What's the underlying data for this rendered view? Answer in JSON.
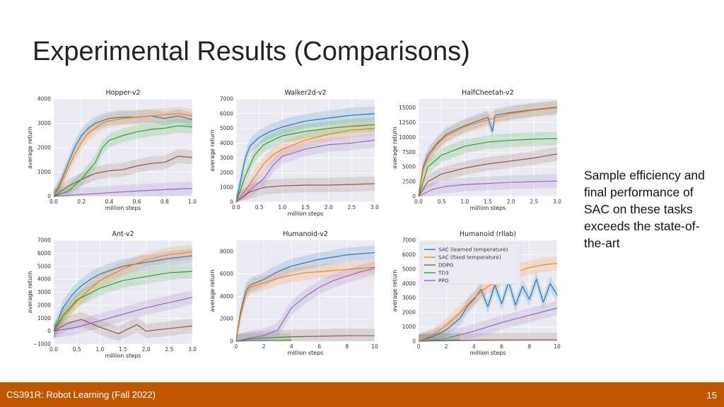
{
  "slide": {
    "title": "Experimental Results (Comparisons)",
    "side_text": "Sample efficiency and final performance of SAC on these tasks exceeds the state-of-the-art",
    "footer_left": "CS391R: Robot Learning (Fall 2022)",
    "page_number": "15"
  },
  "colors": {
    "SAC (learned temperature)": "#1f77b4",
    "SAC (fixed temperature)": "#ff7f0e",
    "DDPG": "#8c564b",
    "TD3": "#2ca02c",
    "PPO": "#9467bd",
    "footer": "#bf5700"
  },
  "chart_data": [
    {
      "type": "line",
      "title": "Hopper-v2",
      "xlabel": "million steps",
      "ylabel": "average return",
      "xlim": [
        0,
        1.0
      ],
      "ylim": [
        0,
        4000
      ],
      "xticks": [
        "0.0",
        "0.2",
        "0.4",
        "0.6",
        "0.8",
        "1.0"
      ],
      "xtick_values": [
        0,
        0.2,
        0.4,
        0.6,
        0.8,
        1.0
      ],
      "yticks": [
        "0",
        "1000",
        "2000",
        "3000",
        "4000"
      ],
      "ytick_values": [
        0,
        1000,
        2000,
        3000,
        4000
      ],
      "series": [
        {
          "name": "SAC (learned temperature)",
          "x": [
            0,
            0.05,
            0.1,
            0.15,
            0.2,
            0.25,
            0.3,
            0.35,
            0.4,
            0.5,
            0.6,
            0.7,
            0.8,
            0.9,
            1.0
          ],
          "y": [
            0,
            600,
            1300,
            2000,
            2500,
            2800,
            3000,
            3100,
            3200,
            3250,
            3250,
            3300,
            3200,
            3300,
            3150
          ]
        },
        {
          "name": "SAC (fixed temperature)",
          "x": [
            0,
            0.05,
            0.1,
            0.15,
            0.2,
            0.25,
            0.3,
            0.35,
            0.4,
            0.5,
            0.6,
            0.7,
            0.8,
            0.9,
            1.0
          ],
          "y": [
            0,
            500,
            1100,
            1700,
            2200,
            2600,
            2800,
            3000,
            3100,
            3200,
            3250,
            3300,
            3350,
            3400,
            3300
          ]
        },
        {
          "name": "DDPG",
          "x": [
            0,
            0.1,
            0.2,
            0.3,
            0.4,
            0.5,
            0.6,
            0.7,
            0.8,
            0.9,
            1.0
          ],
          "y": [
            0,
            400,
            700,
            950,
            1050,
            1100,
            1250,
            1350,
            1400,
            1650,
            1600
          ]
        },
        {
          "name": "TD3",
          "x": [
            0,
            0.1,
            0.2,
            0.3,
            0.35,
            0.4,
            0.5,
            0.6,
            0.7,
            0.8,
            0.9,
            1.0
          ],
          "y": [
            0,
            200,
            700,
            1400,
            2000,
            2300,
            2500,
            2650,
            2750,
            2800,
            2900,
            2850
          ]
        },
        {
          "name": "PPO",
          "x": [
            0,
            0.2,
            0.4,
            0.6,
            0.8,
            1.0
          ],
          "y": [
            0,
            80,
            150,
            220,
            280,
            330
          ]
        }
      ]
    },
    {
      "type": "line",
      "title": "Walker2d-v2",
      "xlabel": "million steps",
      "ylabel": "average return",
      "xlim": [
        0,
        3.0
      ],
      "ylim": [
        0,
        7000
      ],
      "xticks": [
        "0.0",
        "0.5",
        "1.0",
        "1.5",
        "2.0",
        "2.5",
        "3.0"
      ],
      "xtick_values": [
        0,
        0.5,
        1.0,
        1.5,
        2.0,
        2.5,
        3.0
      ],
      "yticks": [
        "0",
        "1000",
        "2000",
        "3000",
        "4000",
        "5000",
        "6000",
        "7000"
      ],
      "ytick_values": [
        0,
        1000,
        2000,
        3000,
        4000,
        5000,
        6000,
        7000
      ],
      "series": [
        {
          "name": "SAC (learned temperature)",
          "x": [
            0,
            0.1,
            0.2,
            0.3,
            0.5,
            0.75,
            1.0,
            1.5,
            2.0,
            2.5,
            3.0
          ],
          "y": [
            0,
            1500,
            3000,
            3800,
            4400,
            4800,
            5100,
            5500,
            5700,
            5900,
            6000
          ]
        },
        {
          "name": "SAC (fixed temperature)",
          "x": [
            0,
            0.2,
            0.4,
            0.6,
            0.8,
            1.0,
            1.5,
            2.0,
            2.5,
            3.0
          ],
          "y": [
            0,
            800,
            1700,
            2600,
            3200,
            3600,
            4200,
            4600,
            4900,
            5000
          ]
        },
        {
          "name": "DDPG",
          "x": [
            0,
            0.3,
            0.6,
            1.0,
            1.5,
            2.0,
            2.5,
            3.0
          ],
          "y": [
            0,
            700,
            1000,
            1100,
            1150,
            1150,
            1200,
            1250
          ]
        },
        {
          "name": "TD3",
          "x": [
            0,
            0.2,
            0.4,
            0.6,
            1.0,
            1.5,
            2.0,
            2.5,
            3.0
          ],
          "y": [
            0,
            1800,
            3200,
            3900,
            4500,
            4800,
            5000,
            5150,
            5250
          ]
        },
        {
          "name": "PPO",
          "x": [
            0,
            0.3,
            0.6,
            0.8,
            1.0,
            1.5,
            2.0,
            2.5,
            3.0
          ],
          "y": [
            0,
            800,
            1600,
            2500,
            3100,
            3600,
            3900,
            4000,
            4200
          ]
        }
      ]
    },
    {
      "type": "line",
      "title": "HalfCheetah-v2",
      "xlabel": "million steps",
      "ylabel": "average return",
      "xlim": [
        0,
        3.0
      ],
      "ylim": [
        0,
        16500
      ],
      "xticks": [
        "0.0",
        "0.5",
        "1.0",
        "1.5",
        "2.0",
        "2.5",
        "3.0"
      ],
      "xtick_values": [
        0,
        0.5,
        1.0,
        1.5,
        2.0,
        2.5,
        3.0
      ],
      "yticks": [
        "0",
        "2500",
        "5000",
        "7500",
        "10000",
        "12500",
        "15000"
      ],
      "ytick_values": [
        0,
        2500,
        5000,
        7500,
        10000,
        12500,
        15000
      ],
      "series": [
        {
          "name": "SAC (learned temperature)",
          "x": [
            0,
            0.1,
            0.2,
            0.4,
            0.6,
            1.0,
            1.5,
            1.6,
            1.65,
            1.7,
            2.0,
            2.5,
            3.0
          ],
          "y": [
            0,
            5000,
            7000,
            9000,
            10500,
            12000,
            13400,
            11000,
            13600,
            13800,
            14200,
            14700,
            15100
          ]
        },
        {
          "name": "SAC (fixed temperature)",
          "x": [
            0,
            0.1,
            0.2,
            0.4,
            0.6,
            1.0,
            1.5,
            2.0,
            2.5,
            3.0
          ],
          "y": [
            0,
            4500,
            6500,
            8800,
            10200,
            11800,
            13000,
            14000,
            14600,
            15000
          ]
        },
        {
          "name": "DDPG",
          "x": [
            0,
            0.2,
            0.5,
            1.0,
            1.5,
            2.0,
            2.5,
            3.0
          ],
          "y": [
            0,
            2500,
            3800,
            4800,
            5500,
            6000,
            6500,
            7200
          ]
        },
        {
          "name": "TD3",
          "x": [
            0,
            0.2,
            0.5,
            1.0,
            1.5,
            2.0,
            2.5,
            3.0
          ],
          "y": [
            0,
            5000,
            7000,
            8500,
            9200,
            9500,
            9700,
            9800
          ]
        },
        {
          "name": "PPO",
          "x": [
            0,
            0.3,
            0.6,
            1.0,
            1.5,
            2.0,
            2.5,
            3.0
          ],
          "y": [
            0,
            1200,
            1700,
            2000,
            2200,
            2400,
            2500,
            2600
          ]
        }
      ]
    },
    {
      "type": "line",
      "title": "Ant-v2",
      "xlabel": "million steps",
      "ylabel": "average return",
      "xlim": [
        0,
        3.0
      ],
      "ylim": [
        -1000,
        7000
      ],
      "xticks": [
        "0.0",
        "0.5",
        "1.0",
        "1.5",
        "2.0",
        "2.5",
        "3.0"
      ],
      "xtick_values": [
        0,
        0.5,
        1.0,
        1.5,
        2.0,
        2.5,
        3.0
      ],
      "yticks": [
        "−1000",
        "0",
        "1000",
        "2000",
        "3000",
        "4000",
        "5000",
        "6000",
        "7000"
      ],
      "ytick_values": [
        -1000,
        0,
        1000,
        2000,
        3000,
        4000,
        5000,
        6000,
        7000
      ],
      "series": [
        {
          "name": "SAC (learned temperature)",
          "x": [
            0,
            0.2,
            0.4,
            0.6,
            0.8,
            1.0,
            1.5,
            2.0,
            2.5,
            3.0
          ],
          "y": [
            0,
            1800,
            2800,
            3500,
            4000,
            4400,
            5000,
            5300,
            5600,
            5800
          ]
        },
        {
          "name": "SAC (fixed temperature)",
          "x": [
            0,
            0.2,
            0.5,
            0.8,
            1.0,
            1.5,
            2.0,
            2.5,
            3.0
          ],
          "y": [
            0,
            1000,
            2300,
            3300,
            3900,
            4800,
            5500,
            5900,
            6100
          ]
        },
        {
          "name": "DDPG",
          "x": [
            0,
            0.3,
            0.6,
            1.0,
            1.4,
            1.8,
            2.0,
            2.5,
            3.0
          ],
          "y": [
            0,
            600,
            900,
            300,
            -200,
            500,
            0,
            200,
            400
          ]
        },
        {
          "name": "TD3",
          "x": [
            0,
            0.2,
            0.5,
            1.0,
            1.5,
            2.0,
            2.5,
            3.0
          ],
          "y": [
            0,
            1200,
            2400,
            3300,
            3900,
            4200,
            4500,
            4600
          ]
        },
        {
          "name": "PPO",
          "x": [
            0,
            0.5,
            1.0,
            1.5,
            2.0,
            2.5,
            3.0
          ],
          "y": [
            0,
            300,
            800,
            1300,
            1800,
            2200,
            2600
          ]
        }
      ]
    },
    {
      "type": "line",
      "title": "Humanoid-v2",
      "xlabel": "million steps",
      "ylabel": "average return",
      "xlim": [
        0,
        10
      ],
      "ylim": [
        0,
        9000
      ],
      "xticks": [
        "0",
        "2",
        "4",
        "6",
        "8",
        "10"
      ],
      "xtick_values": [
        0,
        2,
        4,
        6,
        8,
        10
      ],
      "yticks": [
        "0",
        "2000",
        "4000",
        "6000",
        "8000"
      ],
      "ytick_values": [
        0,
        2000,
        4000,
        6000,
        8000
      ],
      "series": [
        {
          "name": "SAC (learned temperature)",
          "x": [
            0,
            0.3,
            0.7,
            1,
            2,
            3,
            4,
            5,
            6,
            7,
            8,
            9,
            10
          ],
          "y": [
            0,
            2500,
            4500,
            5000,
            5500,
            6200,
            6700,
            7000,
            7300,
            7500,
            7700,
            7800,
            7900
          ]
        },
        {
          "name": "SAC (fixed temperature)",
          "x": [
            0,
            0.3,
            0.7,
            1,
            2,
            3,
            4,
            5,
            6,
            7,
            8,
            9,
            10
          ],
          "y": [
            0,
            2200,
            4200,
            4800,
            5200,
            5600,
            5900,
            6100,
            6200,
            6300,
            6400,
            6500,
            6600
          ]
        },
        {
          "name": "DDPG",
          "x": [
            0,
            1,
            2,
            4,
            6,
            8,
            10
          ],
          "y": [
            0,
            200,
            300,
            400,
            450,
            500,
            500
          ]
        },
        {
          "name": "TD3",
          "x": [
            0,
            1,
            2,
            3,
            4
          ],
          "y": [
            0,
            60,
            80,
            90,
            100
          ]
        },
        {
          "name": "PPO",
          "x": [
            0,
            1,
            2,
            3,
            3.5,
            4,
            5,
            6,
            7,
            8,
            9,
            10
          ],
          "y": [
            0,
            300,
            500,
            1000,
            2000,
            3000,
            4000,
            4800,
            5400,
            5800,
            6200,
            6500
          ]
        }
      ]
    },
    {
      "type": "line",
      "title": "Humanoid (rllab)",
      "xlabel": "million steps",
      "ylabel": "average return",
      "xlim": [
        0,
        10
      ],
      "ylim": [
        0,
        7000
      ],
      "xticks": [
        "0",
        "2",
        "4",
        "6",
        "8",
        "10"
      ],
      "xtick_values": [
        0,
        2,
        4,
        6,
        8,
        10
      ],
      "yticks": [
        "0",
        "1000",
        "2000",
        "3000",
        "4000",
        "5000",
        "6000",
        "7000"
      ],
      "ytick_values": [
        0,
        1000,
        2000,
        3000,
        4000,
        5000,
        6000,
        7000
      ],
      "legend": {
        "position": "upper-left",
        "entries": [
          "SAC (learned temperature)",
          "SAC (fixed temperature)",
          "DDPG",
          "TD3",
          "PPO"
        ]
      },
      "series": [
        {
          "name": "SAC (learned temperature)",
          "x": [
            0,
            1,
            2,
            3,
            3.5,
            4,
            4.5,
            5,
            5.5,
            6,
            6.5,
            7,
            7.5,
            8,
            8.5,
            9,
            9.5,
            10
          ],
          "y": [
            0,
            300,
            800,
            1600,
            2400,
            2900,
            3600,
            2400,
            3900,
            2600,
            4100,
            2500,
            3800,
            2900,
            4300,
            2700,
            4000,
            3200
          ]
        },
        {
          "name": "SAC (fixed temperature)",
          "x": [
            0,
            1,
            2,
            3,
            4,
            5,
            6,
            7,
            8,
            9,
            10
          ],
          "y": [
            0,
            400,
            1100,
            2000,
            3000,
            3800,
            4300,
            4800,
            5100,
            5300,
            5400
          ]
        },
        {
          "name": "DDPG",
          "x": [
            0,
            2,
            4,
            6,
            8,
            10
          ],
          "y": [
            0,
            50,
            80,
            90,
            100,
            100
          ]
        },
        {
          "name": "TD3",
          "x": [
            0,
            1,
            2,
            3
          ],
          "y": [
            0,
            50,
            80,
            100
          ]
        },
        {
          "name": "PPO",
          "x": [
            0,
            2,
            4,
            6,
            8,
            10
          ],
          "y": [
            0,
            200,
            700,
            1300,
            1800,
            2300
          ]
        }
      ]
    }
  ]
}
